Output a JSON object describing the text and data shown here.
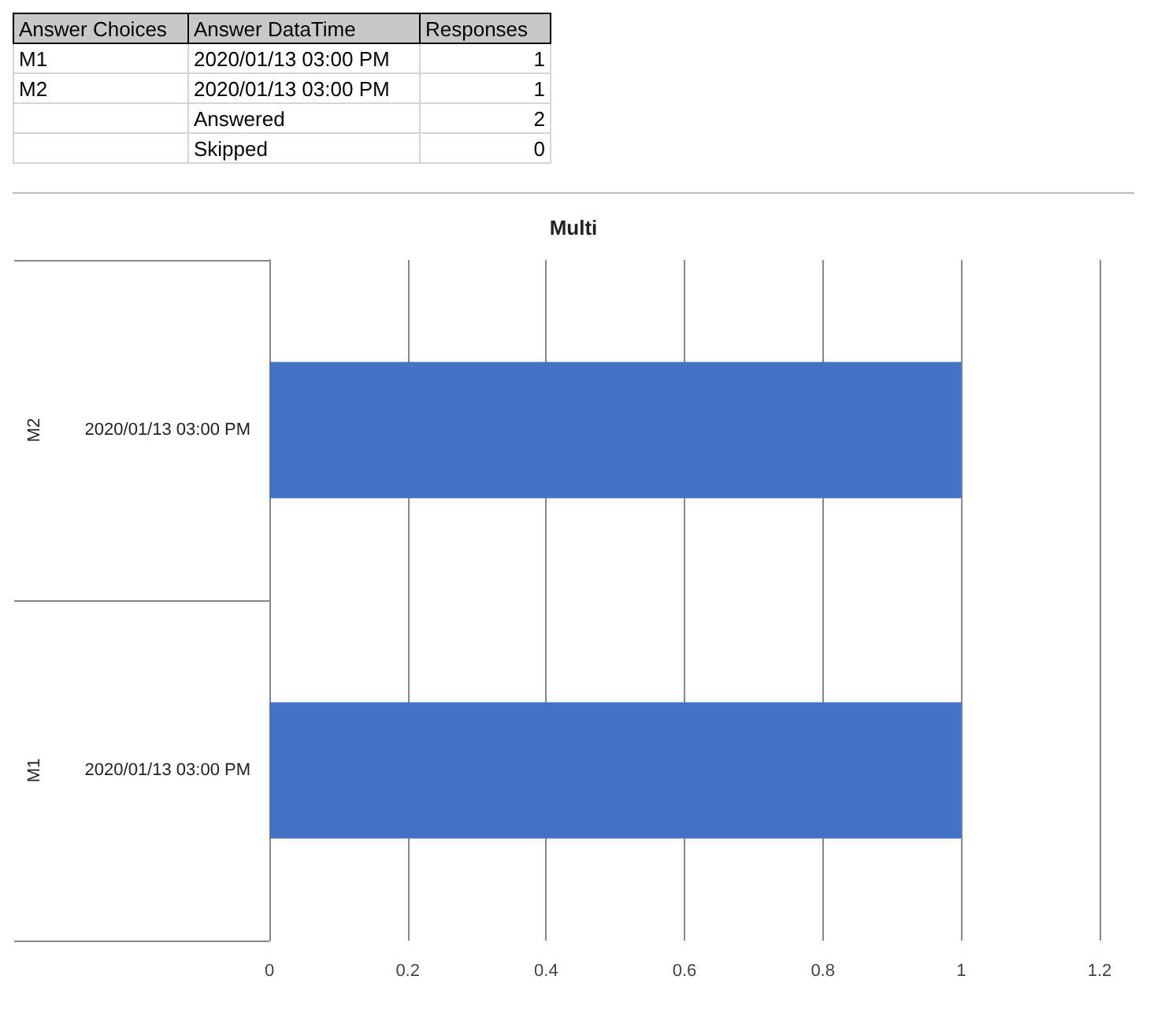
{
  "chart_data": [
    {
      "type": "other",
      "categories": [
        "Answer Choices",
        "Answer DataTime",
        "Responses"
      ],
      "cell_labels": [
        [
          "M1",
          "2020/01/13 03:00 PM",
          "1"
        ],
        [
          "M2",
          "2020/01/13 03:00 PM",
          "1"
        ],
        [
          null,
          "Answered",
          "2"
        ],
        [
          null,
          "Skipped",
          "0"
        ]
      ]
    },
    {
      "type": "bar",
      "orientation": "horizontal",
      "title": "Multi",
      "categories": [
        "2020/01/13 03:00 PM",
        "2020/01/13 03:00 PM"
      ],
      "annotations": [
        "M2",
        "M1"
      ],
      "values": [
        1,
        1
      ],
      "color": "#4472c4",
      "xlim": [
        0,
        1.2
      ],
      "xticks": [
        0,
        0.2,
        0.4,
        0.6,
        0.8,
        1,
        1.2
      ],
      "grid": "x"
    }
  ]
}
